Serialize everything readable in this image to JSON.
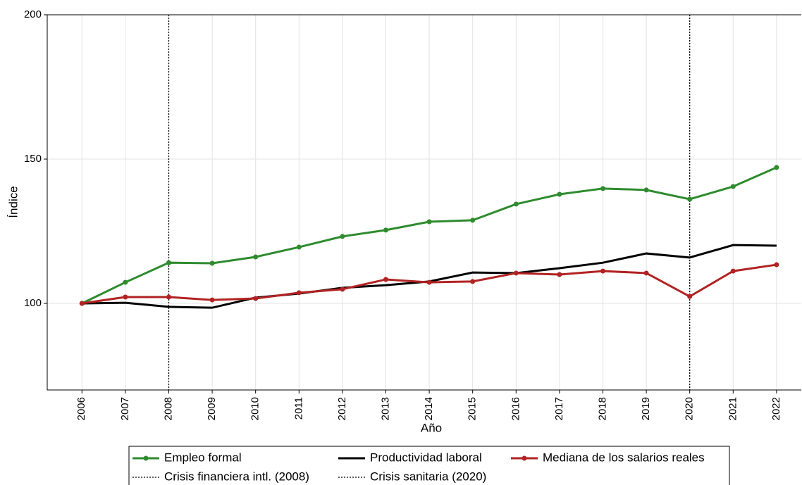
{
  "chart_data": {
    "type": "line",
    "x_label": "Año",
    "y_label": "Índice",
    "x": [
      2006,
      2007,
      2008,
      2009,
      2010,
      2011,
      2012,
      2013,
      2014,
      2015,
      2016,
      2017,
      2018,
      2019,
      2020,
      2021,
      2022
    ],
    "series": [
      {
        "name": "Empleo formal",
        "color": "#2e8b2e",
        "markers": true,
        "values": [
          100,
          107.3,
          114.1,
          113.9,
          116.1,
          119.5,
          123.2,
          125.4,
          128.3,
          128.8,
          134.4,
          137.8,
          139.8,
          139.3,
          136.1,
          140.5,
          147.1
        ]
      },
      {
        "name": "Productividad laboral",
        "color": "#000000",
        "markers": false,
        "values": [
          100,
          100.2,
          98.8,
          98.5,
          102.0,
          103.4,
          105.4,
          106.3,
          107.6,
          110.7,
          110.5,
          112.2,
          114.1,
          117.3,
          115.9,
          120.2,
          120.0
        ]
      },
      {
        "name": "Mediana de los salarios reales",
        "color": "#b22222",
        "markers": true,
        "values": [
          100,
          102.2,
          102.2,
          101.2,
          101.7,
          103.7,
          104.9,
          108.3,
          107.3,
          107.6,
          110.5,
          110.0,
          111.2,
          110.5,
          102.4,
          111.2,
          113.4
        ]
      }
    ],
    "vlines": [
      {
        "x": 2008,
        "name": "Crisis financiera intl. (2008)",
        "color": "#000000"
      },
      {
        "x": 2020,
        "name": "Crisis sanitaria (2020)",
        "color": "#000000"
      }
    ],
    "xlim": [
      2005.2,
      2022.57
    ],
    "xticks": [
      2006,
      2007,
      2008,
      2009,
      2010,
      2011,
      2012,
      2013,
      2014,
      2015,
      2016,
      2017,
      2018,
      2019,
      2020,
      2021,
      2022
    ],
    "ylim": [
      70,
      200
    ],
    "yticks": [
      100,
      150,
      200
    ],
    "grid": true
  }
}
